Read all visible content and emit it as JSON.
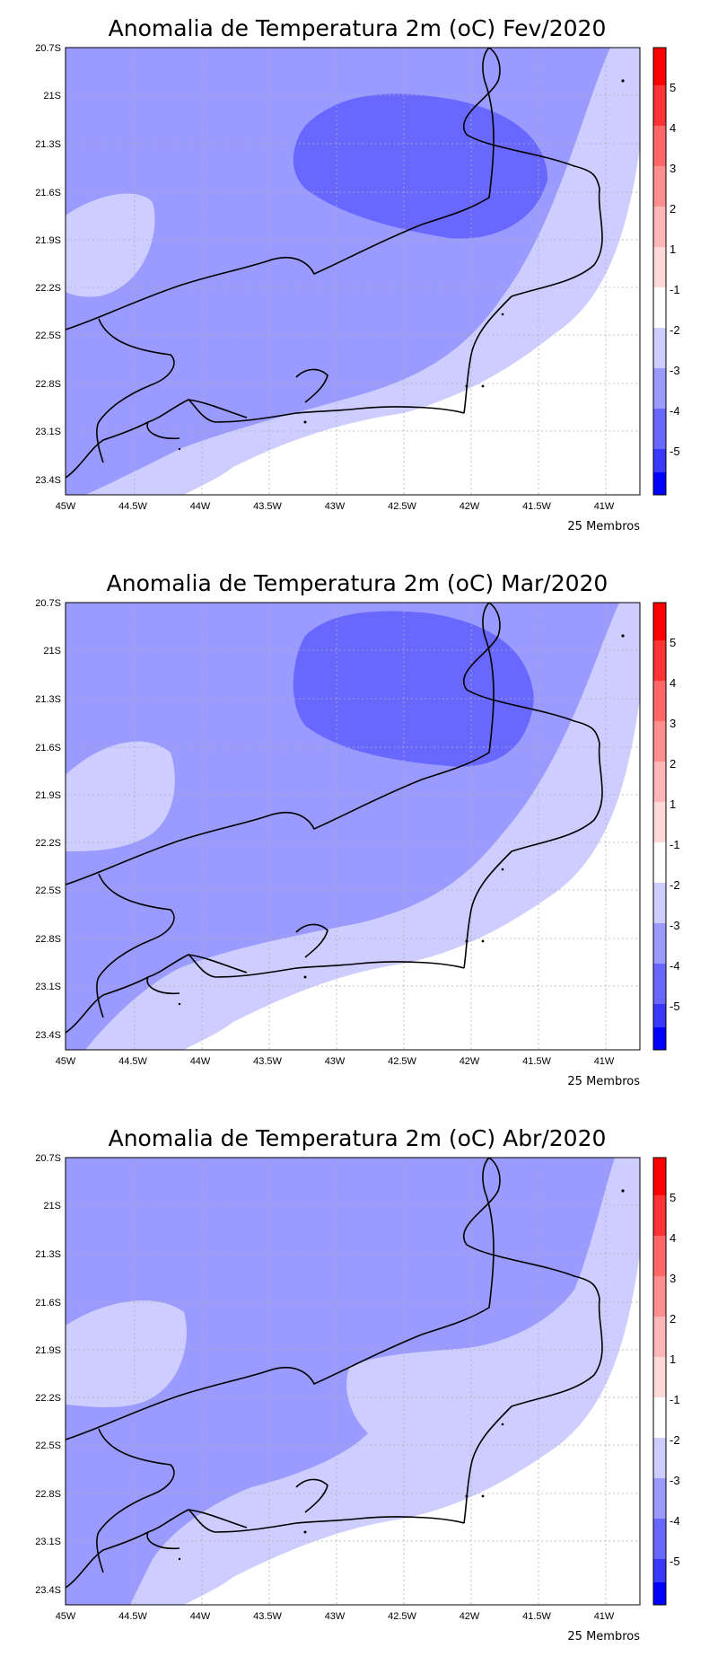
{
  "panels": [
    {
      "title": "Anomalia de Temperatura 2m (oC) Fev/2020",
      "footer": "25 Membros"
    },
    {
      "title": "Anomalia de Temperatura 2m (oC) Mar/2020",
      "footer": "25 Membros"
    },
    {
      "title": "Anomalia de Temperatura 2m (oC) Abr/2020",
      "footer": "25 Membros"
    }
  ],
  "axes": {
    "x_ticks": [
      "45W",
      "44.5W",
      "44W",
      "43.5W",
      "43W",
      "42.5W",
      "42W",
      "41.5W",
      "41W"
    ],
    "y_ticks": [
      "20.7S",
      "21S",
      "21.3S",
      "21.6S",
      "21.9S",
      "22.2S",
      "22.5S",
      "22.8S",
      "23.1S",
      "23.4S"
    ]
  },
  "colorbar": {
    "labels": [
      "5",
      "4",
      "3",
      "2",
      "1",
      "-1",
      "-2",
      "-3",
      "-4",
      "-5"
    ],
    "colors": [
      "#ff0000",
      "#ff3333",
      "#ff6666",
      "#ff8e8e",
      "#ffb6b6",
      "#ffd8d8",
      "#ffffff",
      "#cdcdff",
      "#9a9aff",
      "#6868ff",
      "#3838ff",
      "#0000ff"
    ]
  },
  "shading_colors": {
    "minus1_to_minus2": "#cdcdff",
    "minus2_to_minus3": "#9a9aff",
    "minus3_to_minus4": "#6868ff",
    "land_outline": "#000000"
  }
}
